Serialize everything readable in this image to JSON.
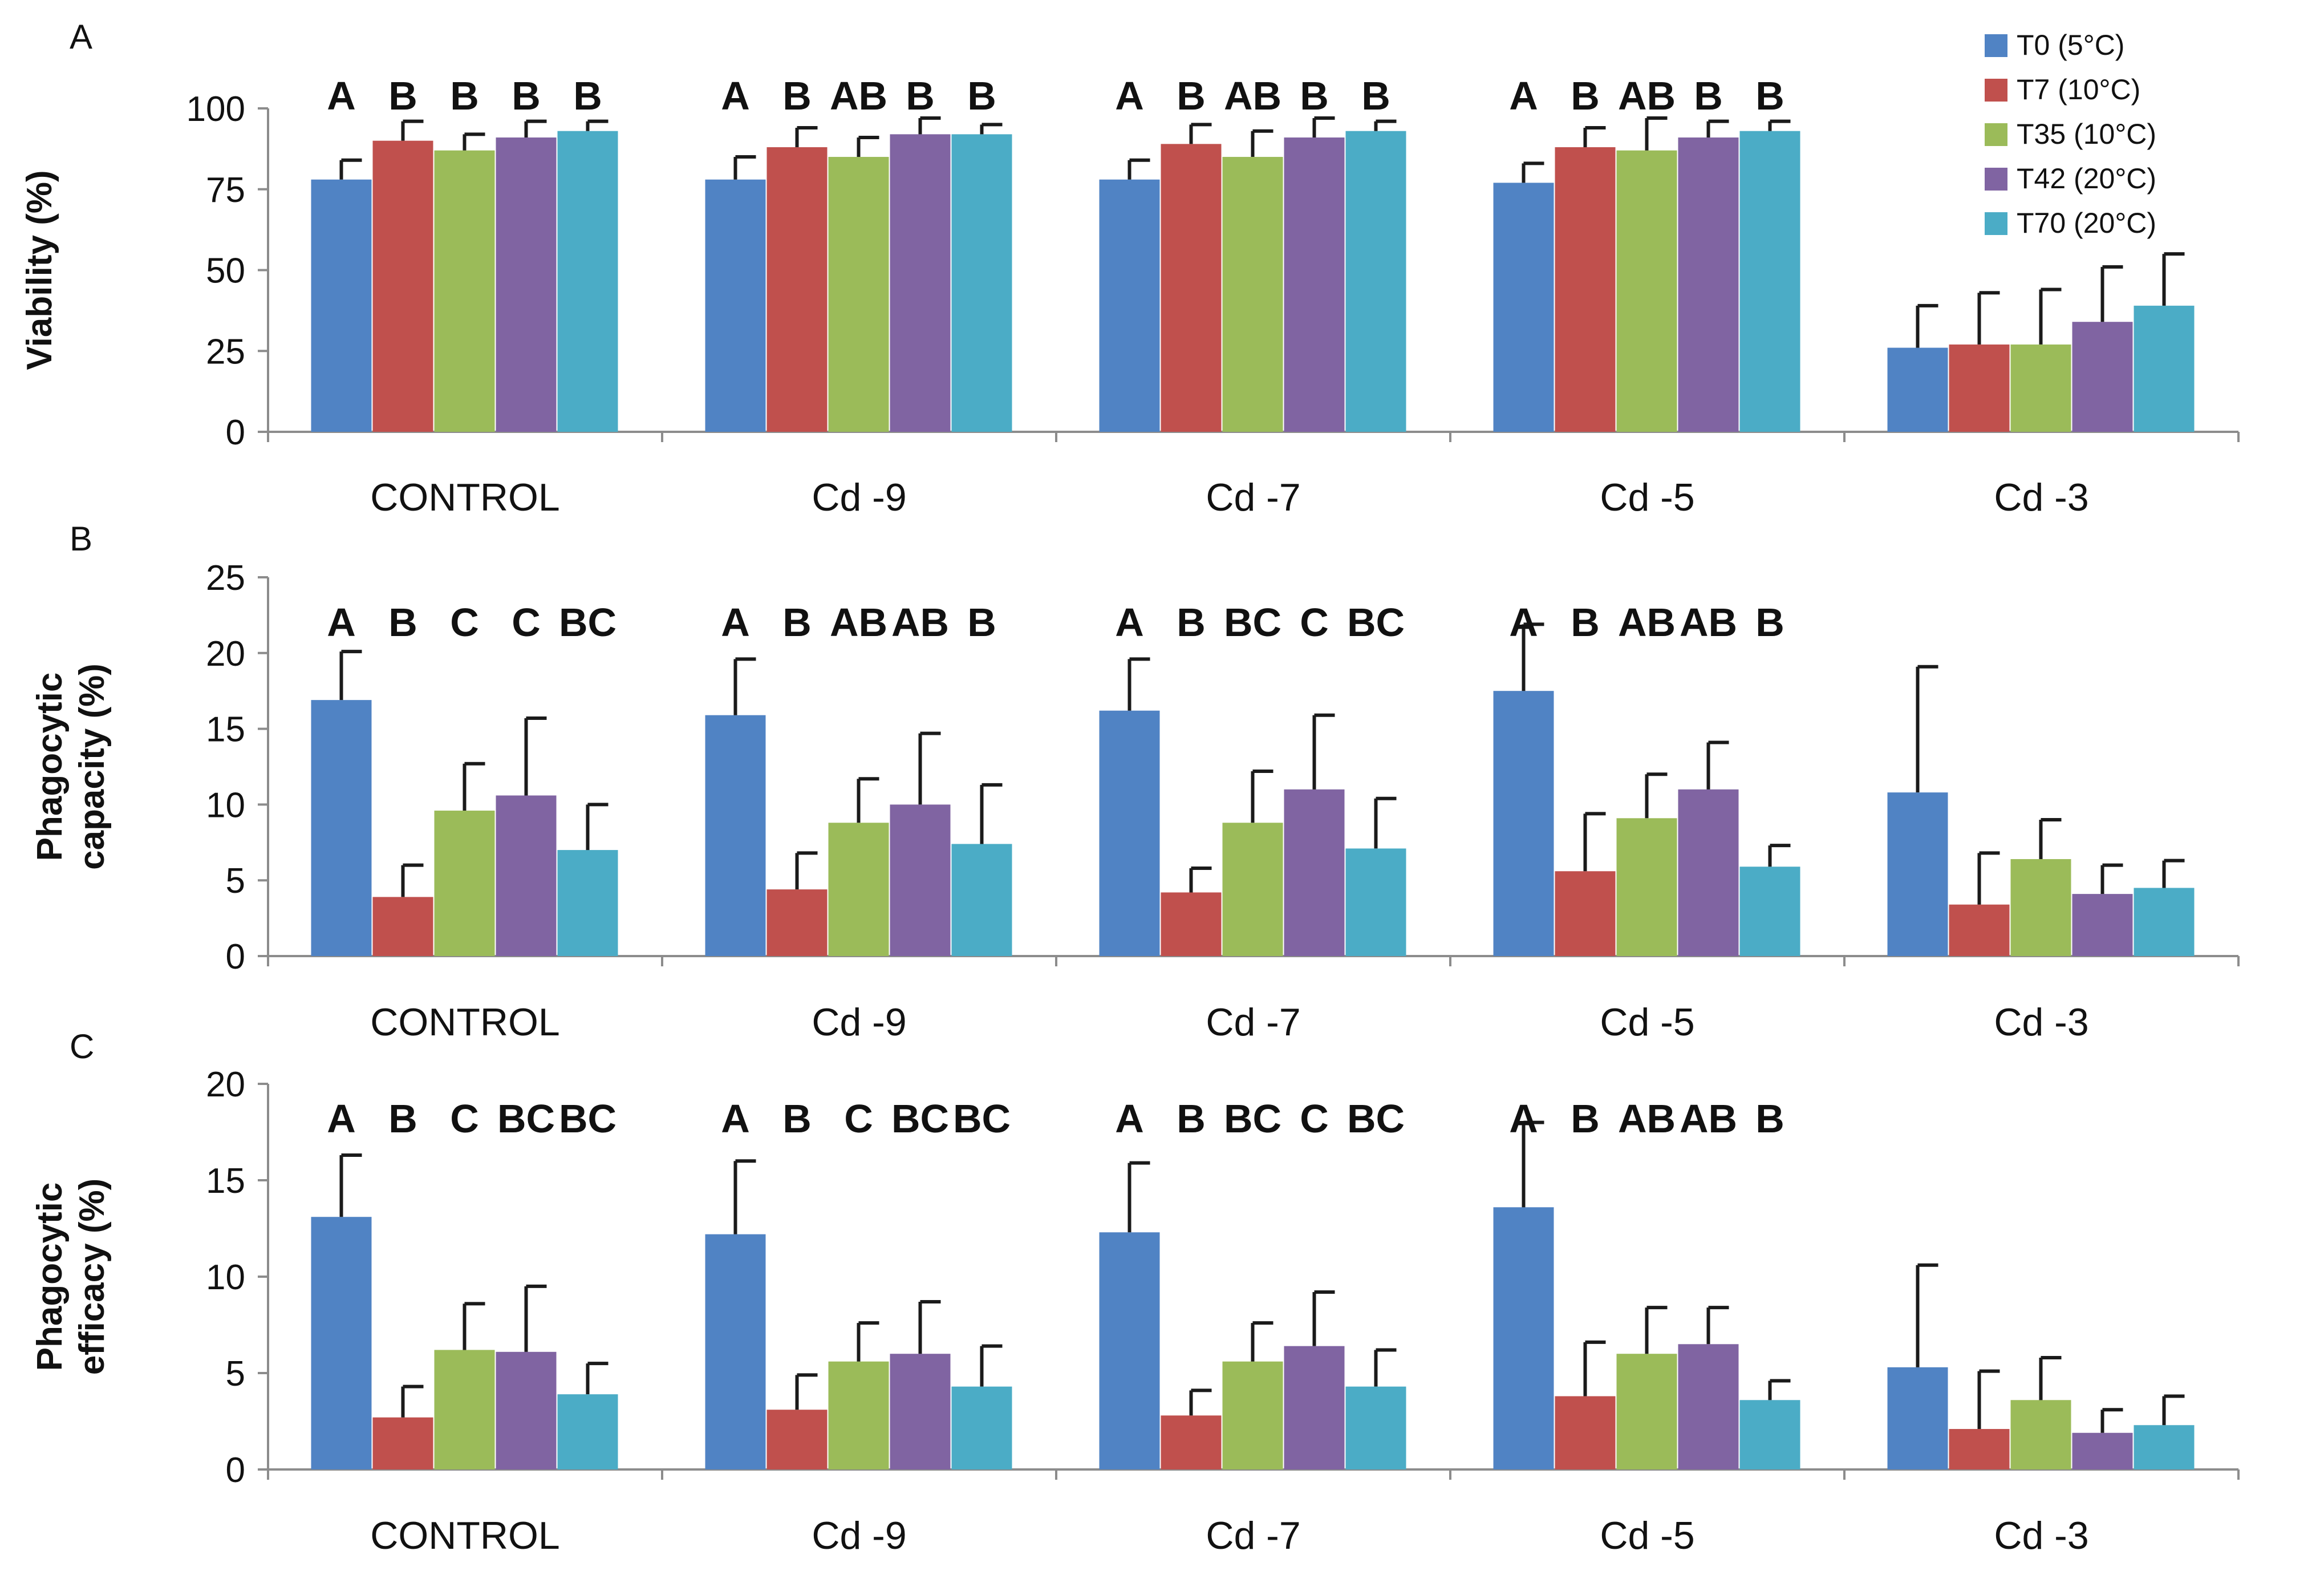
{
  "chart_data": [
    {
      "type": "bar",
      "panel": "A",
      "ylabel": "Viability (%)",
      "ylim": [
        0,
        100
      ],
      "yticks": [
        0,
        25,
        50,
        75,
        100
      ],
      "categories": [
        "CONTROL",
        "Cd -9",
        "Cd -7",
        "Cd -5",
        "Cd -3"
      ],
      "series": [
        {
          "name": "T0 (5°C)",
          "values": [
            78,
            78,
            78,
            77,
            26
          ],
          "errors": [
            6,
            7,
            6,
            6,
            13
          ]
        },
        {
          "name": "T7 (10°C)",
          "values": [
            90,
            88,
            89,
            88,
            27
          ],
          "errors": [
            6,
            6,
            6,
            6,
            16
          ]
        },
        {
          "name": "T35 (10°C)",
          "values": [
            87,
            85,
            85,
            87,
            27
          ],
          "errors": [
            5,
            6,
            8,
            10,
            17
          ]
        },
        {
          "name": "T42 (20°C)",
          "values": [
            91,
            92,
            91,
            91,
            34
          ],
          "errors": [
            5,
            5,
            6,
            5,
            17
          ]
        },
        {
          "name": "T70 (20°C)",
          "values": [
            93,
            92,
            93,
            93,
            39
          ],
          "errors": [
            3,
            3,
            3,
            3,
            16
          ]
        }
      ],
      "significance": [
        [
          "A",
          "B",
          "B",
          "B",
          "B"
        ],
        [
          "A",
          "B",
          "AB",
          "B",
          "B"
        ],
        [
          "A",
          "B",
          "AB",
          "B",
          "B"
        ],
        [
          "A",
          "B",
          "AB",
          "B",
          "B"
        ],
        []
      ]
    },
    {
      "type": "bar",
      "panel": "B",
      "ylabel": [
        "Phagocytic",
        "capacity (%)"
      ],
      "ylim": [
        0,
        25
      ],
      "yticks": [
        0,
        5,
        10,
        15,
        20,
        25
      ],
      "categories": [
        "CONTROL",
        "Cd -9",
        "Cd -7",
        "Cd -5",
        "Cd -3"
      ],
      "series": [
        {
          "name": "T0 (5°C)",
          "values": [
            16.9,
            15.9,
            16.2,
            17.5,
            10.8
          ],
          "errors": [
            3.2,
            3.7,
            3.4,
            4.4,
            8.3
          ]
        },
        {
          "name": "T7 (10°C)",
          "values": [
            3.9,
            4.4,
            4.2,
            5.6,
            3.4
          ],
          "errors": [
            2.1,
            2.4,
            1.6,
            3.8,
            3.4
          ]
        },
        {
          "name": "T35 (10°C)",
          "values": [
            9.6,
            8.8,
            8.8,
            9.1,
            6.4
          ],
          "errors": [
            3.1,
            2.9,
            3.4,
            2.9,
            2.6
          ]
        },
        {
          "name": "T42 (20°C)",
          "values": [
            10.6,
            10.0,
            11.0,
            11.0,
            4.1
          ],
          "errors": [
            5.1,
            4.7,
            4.9,
            3.1,
            1.9
          ]
        },
        {
          "name": "T70 (20°C)",
          "values": [
            7.0,
            7.4,
            7.1,
            5.9,
            4.5
          ],
          "errors": [
            3.0,
            3.9,
            3.3,
            1.4,
            1.8
          ]
        }
      ],
      "significance": [
        [
          "A",
          "B",
          "C",
          "C",
          "BC"
        ],
        [
          "A",
          "B",
          "AB",
          "AB",
          "B"
        ],
        [
          "A",
          "B",
          "BC",
          "C",
          "BC"
        ],
        [
          "A",
          "B",
          "AB",
          "AB",
          "B"
        ],
        []
      ]
    },
    {
      "type": "bar",
      "panel": "C",
      "ylabel": [
        "Phagocytic",
        "efficacy (%)"
      ],
      "ylim": [
        0,
        20
      ],
      "yticks": [
        0,
        5,
        10,
        15,
        20
      ],
      "categories": [
        "CONTROL",
        "Cd -9",
        "Cd -7",
        "Cd -5",
        "Cd -3"
      ],
      "series": [
        {
          "name": "T0 (5°C)",
          "values": [
            13.1,
            12.2,
            12.3,
            13.6,
            5.3
          ],
          "errors": [
            3.2,
            3.8,
            3.6,
            4.4,
            5.3
          ]
        },
        {
          "name": "T7 (10°C)",
          "values": [
            2.7,
            3.1,
            2.8,
            3.8,
            2.1
          ],
          "errors": [
            1.6,
            1.8,
            1.3,
            2.8,
            3.0
          ]
        },
        {
          "name": "T35 (10°C)",
          "values": [
            6.2,
            5.6,
            5.6,
            6.0,
            3.6
          ],
          "errors": [
            2.4,
            2.0,
            2.0,
            2.4,
            2.2
          ]
        },
        {
          "name": "T42 (20°C)",
          "values": [
            6.1,
            6.0,
            6.4,
            6.5,
            1.9
          ],
          "errors": [
            3.4,
            2.7,
            2.8,
            1.9,
            1.2
          ]
        },
        {
          "name": "T70 (20°C)",
          "values": [
            3.9,
            4.3,
            4.3,
            3.6,
            2.3
          ],
          "errors": [
            1.6,
            2.1,
            1.9,
            1.0,
            1.5
          ]
        }
      ],
      "significance": [
        [
          "A",
          "B",
          "C",
          "BC",
          "BC"
        ],
        [
          "A",
          "B",
          "C",
          "BC",
          "BC"
        ],
        [
          "A",
          "B",
          "BC",
          "C",
          "BC"
        ],
        [
          "A",
          "B",
          "AB",
          "AB",
          "B"
        ],
        []
      ]
    }
  ],
  "legend": [
    {
      "label": "T0 (5°C)",
      "color": "#5083c4"
    },
    {
      "label": "T7 (10°C)",
      "color": "#c0504d"
    },
    {
      "label": "T35 (10°C)",
      "color": "#9bbb59"
    },
    {
      "label": "T42 (20°C)",
      "color": "#8064a2"
    },
    {
      "label": "T70 (20°C)",
      "color": "#4bacc6"
    }
  ]
}
